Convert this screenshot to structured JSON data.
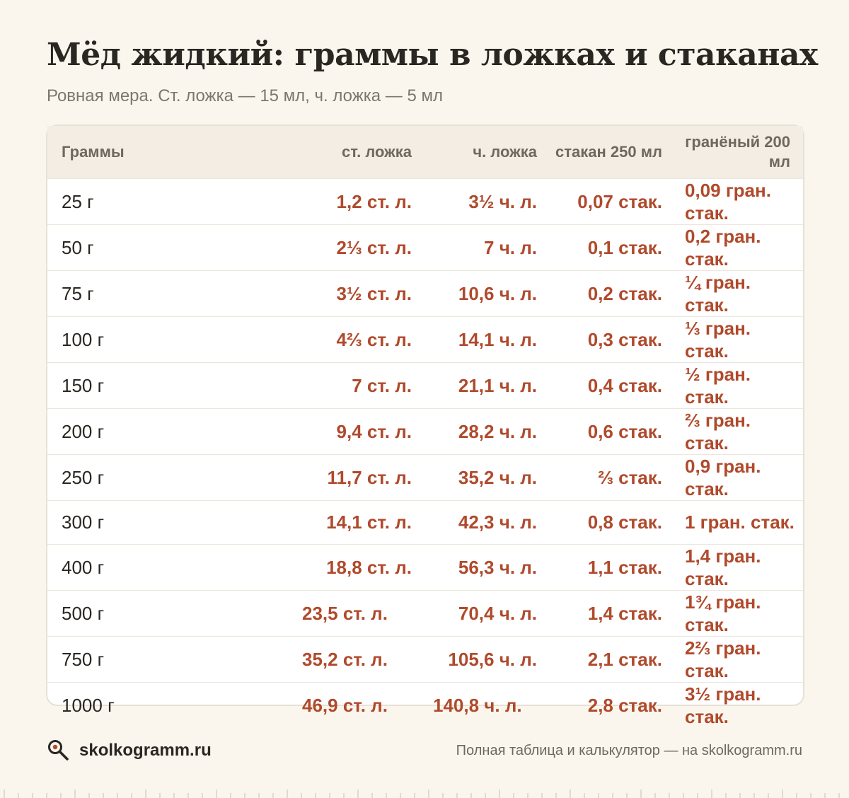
{
  "header": {
    "title": "Мёд жидкий: граммы в ложках и стаканах",
    "subtitle": "Ровная мера. Ст. ложка — 15 мл, ч. ложка — 5 мл"
  },
  "table": {
    "columns": [
      "Граммы",
      "ст. ложка",
      "ч. ложка",
      "стакан 250 мл",
      "гранёный 200 мл"
    ],
    "rows": [
      [
        "25 г",
        "1,2 ст. л.",
        "3½ ч. л.",
        "0,07 стак.",
        "0,09 гран. стак."
      ],
      [
        "50 г",
        "2⅓ ст. л.",
        "7 ч. л.",
        "0,1 стак.",
        "0,2 гран. стак."
      ],
      [
        "75 г",
        "3½ ст. л.",
        "10,6 ч. л.",
        "0,2 стак.",
        "¼ гран. стак."
      ],
      [
        "100 г",
        "4⅔ ст. л.",
        "14,1 ч. л.",
        "0,3 стак.",
        "⅓ гран. стак."
      ],
      [
        "150 г",
        "7 ст. л.",
        "21,1 ч. л.",
        "0,4 стак.",
        "½ гран. стак."
      ],
      [
        "200 г",
        "9,4 ст. л.",
        "28,2 ч. л.",
        "0,6 стак.",
        "⅔ гран. стак."
      ],
      [
        "250 г",
        "11,7 ст. л.",
        "35,2 ч. л.",
        "⅔ стак.",
        "0,9 гран. стак."
      ],
      [
        "300 г",
        "14,1 ст. л.",
        "42,3 ч. л.",
        "0,8 стак.",
        "1 гран. стак."
      ],
      [
        "400 г",
        "18,8 ст. л.",
        "56,3 ч. л.",
        "1,1 стак.",
        "1,4 гран. стак."
      ],
      [
        "500 г",
        "23,5 ст. л.",
        "70,4 ч. л.",
        "1,4 стак.",
        "1¾ гран. стак."
      ],
      [
        "750 г",
        "35,2 ст. л.",
        "105,6 ч. л.",
        "2,1 стак.",
        "2⅔ гран. стак."
      ],
      [
        "1000 г",
        "46,9 ст. л.",
        "140,8 ч. л.",
        "2,8 стак.",
        "3½ гран. стак."
      ]
    ]
  },
  "footer": {
    "brand": "skolkogramm.ru",
    "brand_icon": "magnifier-icon",
    "note": "Полная таблица и калькулятор — на skolkogramm.ru"
  },
  "colors": {
    "accent": "#b04a2c",
    "background": "#faf6ee",
    "header_row": "#f3ede4"
  }
}
